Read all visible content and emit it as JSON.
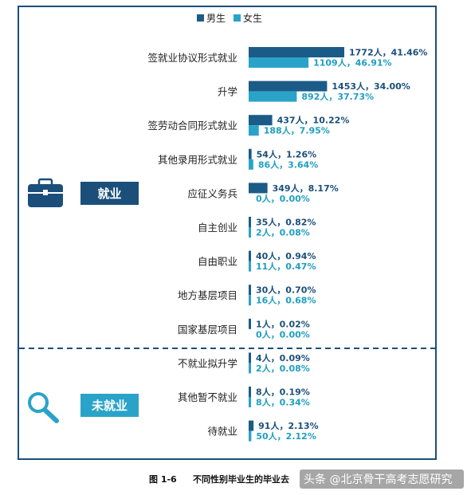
{
  "legend": {
    "male": "男生",
    "female": "女生"
  },
  "colors": {
    "male": "#1b5b87",
    "female": "#2aa3c9",
    "border": "#1b4f7a",
    "badge_employed": "#1b4f7a",
    "badge_unemployed": "#2aa3c9"
  },
  "groups": {
    "employed": "就业",
    "unemployed": "未就业"
  },
  "icons": {
    "employed": "briefcase-icon",
    "unemployed": "magnifier-icon"
  },
  "caption": {
    "label": "图 1-6",
    "title": "不同性别毕业生的毕业去"
  },
  "watermark": "头条 @北京骨干高考志愿研究",
  "chart_data": {
    "type": "bar",
    "orientation": "horizontal",
    "xlim": [
      0,
      1772
    ],
    "categories": [
      "签就业协议形式就业",
      "升学",
      "签劳动合同形式就业",
      "其他录用形式就业",
      "应征义务兵",
      "自主创业",
      "自由职业",
      "地方基层项目",
      "国家基层项目",
      "不就业拟升学",
      "其他暂不就业",
      "待就业"
    ],
    "groups": [
      {
        "name": "就业",
        "count": 9
      },
      {
        "name": "未就业",
        "count": 3
      }
    ],
    "series": [
      {
        "name": "男生",
        "values": [
          1772,
          1453,
          437,
          54,
          349,
          35,
          40,
          30,
          1,
          4,
          8,
          91
        ],
        "labels": [
          "1772人，41.46%",
          "1453人，34.00%",
          "437人，10.22%",
          "54人，1.26%",
          "349人，8.17%",
          "35人，0.82%",
          "40人，0.94%",
          "30人，0.70%",
          "1人，0.02%",
          "4人，0.09%",
          "8人，0.19%",
          "91人，2.13%"
        ]
      },
      {
        "name": "女生",
        "values": [
          1109,
          892,
          188,
          86,
          0,
          2,
          11,
          16,
          0,
          2,
          8,
          50
        ],
        "labels": [
          "1109人，46.91%",
          "892人，37.73%",
          "188人，7.95%",
          "86人，3.64%",
          "0人，0.00%",
          "2人，0.08%",
          "11人，0.47%",
          "16人，0.68%",
          "0人，0.00%",
          "2人，0.08%",
          "8人，0.34%",
          "50人，2.12%"
        ]
      }
    ]
  }
}
